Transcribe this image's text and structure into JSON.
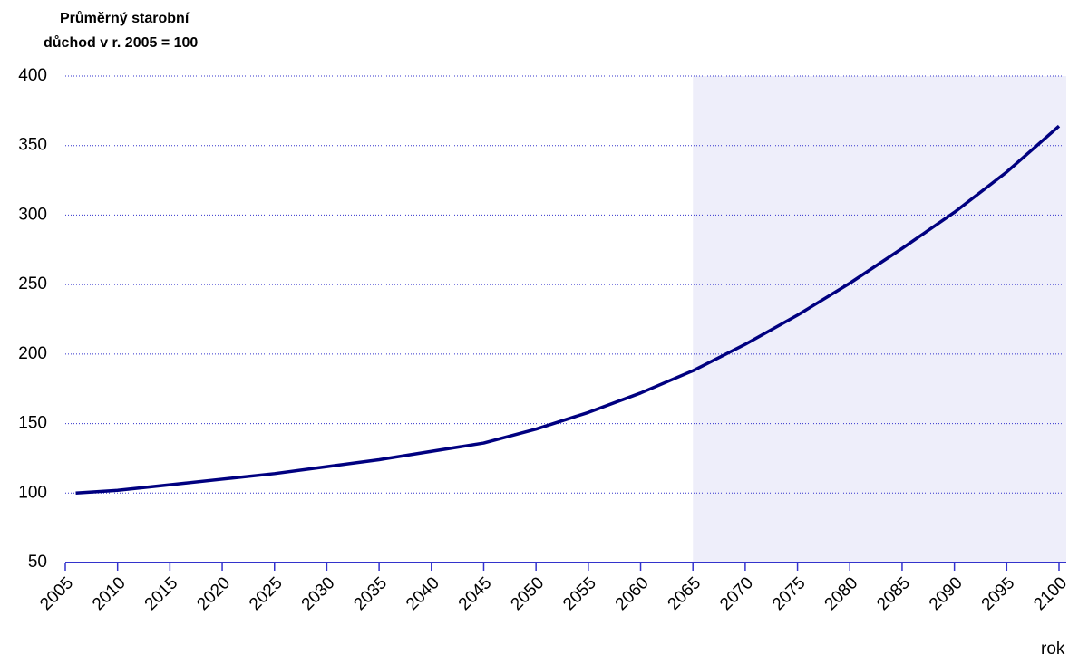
{
  "chart_data": {
    "type": "line",
    "ylabel": [
      "Průměrný starobní",
      "důchod v r. 2005 = 100"
    ],
    "xlabel": "rok",
    "x": [
      2006,
      2010,
      2015,
      2020,
      2025,
      2030,
      2035,
      2040,
      2045,
      2050,
      2055,
      2060,
      2065,
      2070,
      2075,
      2080,
      2085,
      2090,
      2095,
      2100
    ],
    "series": [
      {
        "name": "Průměrný starobní důchod",
        "color": "#000080",
        "values": [
          100,
          102,
          106,
          110,
          114,
          119,
          124,
          130,
          136,
          146,
          158,
          172,
          188,
          207,
          228,
          251,
          276,
          302,
          331,
          364
        ]
      }
    ],
    "xlim": [
      2005,
      2100
    ],
    "xticks": [
      2005,
      2010,
      2015,
      2020,
      2025,
      2030,
      2035,
      2040,
      2045,
      2050,
      2055,
      2060,
      2065,
      2070,
      2075,
      2080,
      2085,
      2090,
      2095,
      2100
    ],
    "ylim": [
      50,
      400
    ],
    "yticks": [
      50,
      100,
      150,
      200,
      250,
      300,
      350,
      400
    ],
    "grid": true,
    "highlight_from": 2065
  }
}
